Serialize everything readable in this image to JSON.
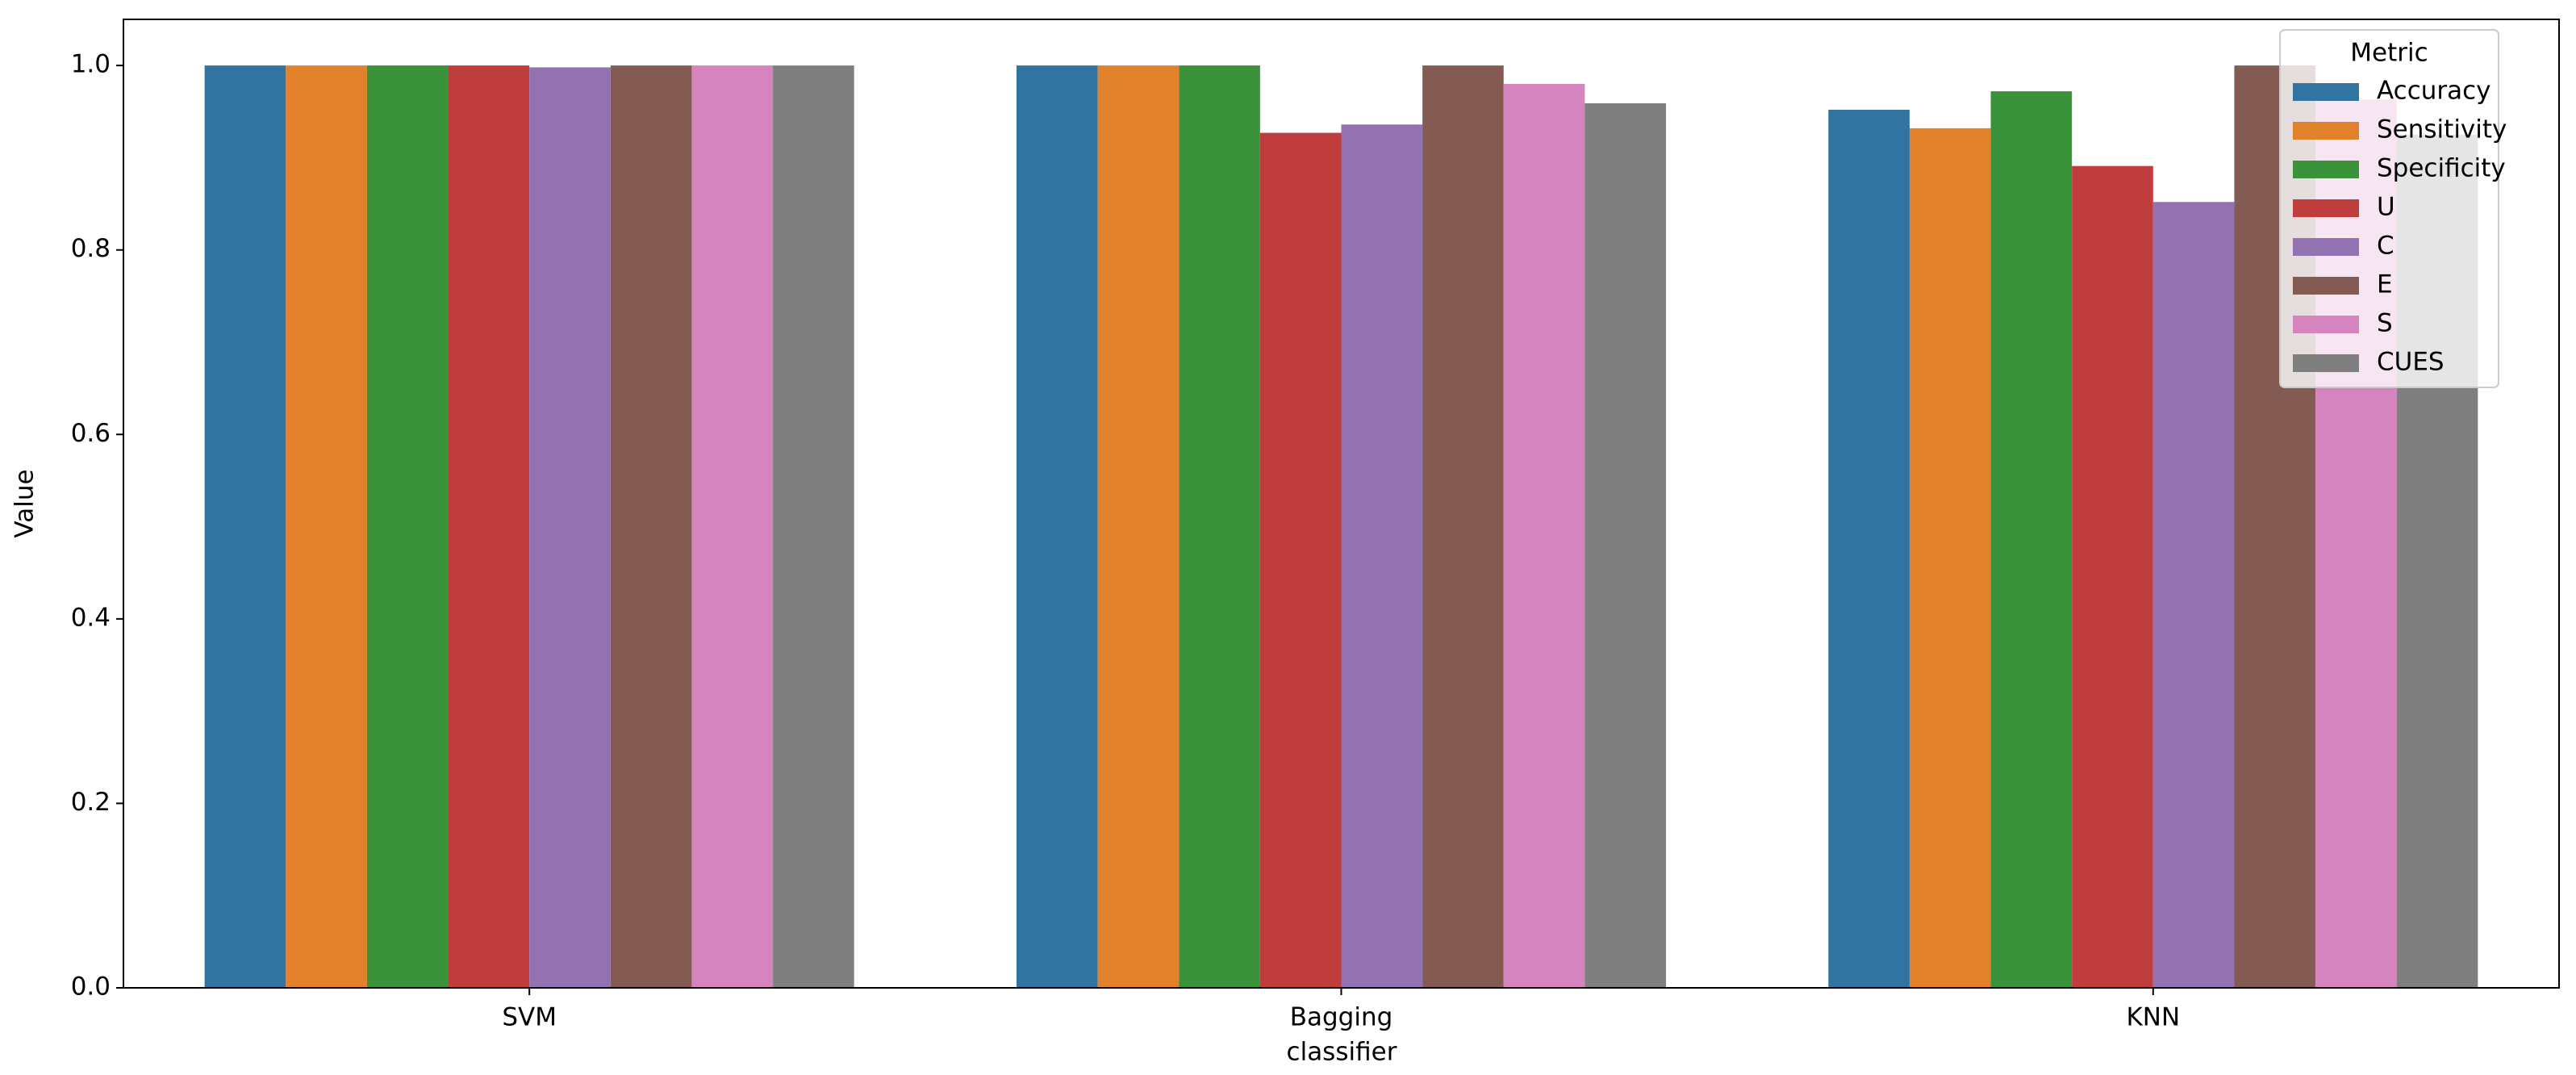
{
  "chart_data": {
    "type": "bar",
    "xlabel": "classifier",
    "ylabel": "Value",
    "categories": [
      "SVM",
      "Bagging",
      "KNN"
    ],
    "series": [
      {
        "name": "Accuracy",
        "color": "#3274a1",
        "values": [
          1.0,
          1.0,
          0.952
        ]
      },
      {
        "name": "Sensitivity",
        "color": "#e1812c",
        "values": [
          1.0,
          1.0,
          0.932
        ]
      },
      {
        "name": "Specificity",
        "color": "#3a923a",
        "values": [
          1.0,
          1.0,
          0.972
        ]
      },
      {
        "name": "U",
        "color": "#c03d3e",
        "values": [
          1.0,
          0.927,
          0.891
        ]
      },
      {
        "name": "C",
        "color": "#9372b2",
        "values": [
          0.998,
          0.936,
          0.852
        ]
      },
      {
        "name": "E",
        "color": "#845b53",
        "values": [
          1.0,
          1.0,
          1.0
        ]
      },
      {
        "name": "S",
        "color": "#d684bd",
        "values": [
          1.0,
          0.98,
          0.963
        ]
      },
      {
        "name": "CUES",
        "color": "#7f7f7f",
        "values": [
          1.0,
          0.959,
          0.925
        ]
      }
    ],
    "legend_title": "Metric",
    "legend_loc": "upper right",
    "ylim": [
      0,
      1.05
    ],
    "yticks": [
      {
        "value": 0,
        "label": "0.0"
      },
      0.2,
      0.4,
      0.6,
      0.8,
      {
        "value": 1,
        "label": "1.0"
      }
    ],
    "grid": false
  }
}
